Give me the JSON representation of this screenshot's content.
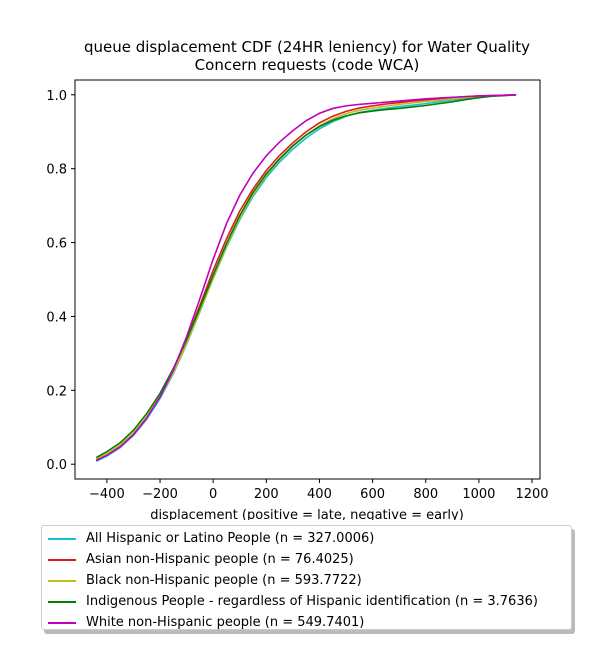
{
  "chart_data": {
    "type": "line",
    "title_lines": [
      "queue displacement CDF (24HR leniency) for Water Quality",
      "Concern  requests (code WCA)"
    ],
    "xlabel": "displacement (positive = late, negative = early)",
    "ylabel": "",
    "xlim": [
      -520,
      1230
    ],
    "ylim": [
      -0.04,
      1.04
    ],
    "xticks": [
      -400,
      -200,
      0,
      200,
      400,
      600,
      800,
      1000,
      1200
    ],
    "yticks": [
      0.0,
      0.2,
      0.4,
      0.6,
      0.8,
      1.0
    ],
    "xtick_labels": [
      "−400",
      "−200",
      "0",
      "200",
      "400",
      "600",
      "800",
      "1000",
      "1200"
    ],
    "ytick_labels": [
      "0.0",
      "0.2",
      "0.4",
      "0.6",
      "0.8",
      "1.0"
    ],
    "grid": false,
    "legend_position": "below",
    "series": [
      {
        "name": "All Hispanic or Latino People (n = 327.0006)",
        "color": "#17becf",
        "x": [
          -440,
          -400,
          -350,
          -300,
          -250,
          -200,
          -150,
          -100,
          -50,
          0,
          50,
          100,
          150,
          200,
          250,
          300,
          350,
          400,
          450,
          500,
          550,
          600,
          650,
          700,
          750,
          800,
          850,
          900,
          950,
          1000,
          1050,
          1100,
          1140
        ],
        "y": [
          0.008,
          0.022,
          0.045,
          0.078,
          0.122,
          0.178,
          0.245,
          0.325,
          0.413,
          0.503,
          0.587,
          0.662,
          0.725,
          0.776,
          0.818,
          0.853,
          0.883,
          0.908,
          0.927,
          0.942,
          0.952,
          0.958,
          0.963,
          0.968,
          0.972,
          0.976,
          0.981,
          0.986,
          0.99,
          0.994,
          0.997,
          0.999,
          1.0
        ]
      },
      {
        "name": "Asian non-Hispanic people (n = 76.4025)",
        "color": "#e31a1c",
        "x": [
          -440,
          -400,
          -350,
          -300,
          -250,
          -200,
          -150,
          -100,
          -50,
          0,
          50,
          100,
          150,
          200,
          250,
          300,
          350,
          400,
          450,
          500,
          550,
          600,
          650,
          700,
          750,
          800,
          850,
          900,
          950,
          1000,
          1050,
          1100,
          1140
        ],
        "y": [
          0.012,
          0.026,
          0.05,
          0.083,
          0.127,
          0.183,
          0.252,
          0.337,
          0.43,
          0.525,
          0.61,
          0.685,
          0.745,
          0.795,
          0.836,
          0.87,
          0.9,
          0.924,
          0.942,
          0.955,
          0.964,
          0.97,
          0.975,
          0.979,
          0.983,
          0.986,
          0.989,
          0.992,
          0.995,
          0.997,
          0.998,
          0.999,
          1.0
        ]
      },
      {
        "name": "Black non-Hispanic people (n = 593.7722)",
        "color": "#bcbd22",
        "x": [
          -440,
          -400,
          -350,
          -300,
          -250,
          -200,
          -150,
          -100,
          -50,
          0,
          50,
          100,
          150,
          200,
          250,
          300,
          350,
          400,
          450,
          500,
          550,
          600,
          650,
          700,
          750,
          800,
          850,
          900,
          950,
          1000,
          1050,
          1100,
          1140
        ],
        "y": [
          0.014,
          0.028,
          0.052,
          0.085,
          0.128,
          0.182,
          0.248,
          0.327,
          0.415,
          0.505,
          0.59,
          0.666,
          0.73,
          0.782,
          0.825,
          0.861,
          0.891,
          0.916,
          0.935,
          0.949,
          0.958,
          0.964,
          0.969,
          0.974,
          0.978,
          0.982,
          0.985,
          0.989,
          0.992,
          0.995,
          0.997,
          0.999,
          1.0
        ]
      },
      {
        "name": "Indigenous People - regardless of Hispanic identification (n = 3.7636)",
        "color": "#008000",
        "x": [
          -440,
          -400,
          -350,
          -300,
          -250,
          -200,
          -150,
          -100,
          -50,
          0,
          50,
          100,
          150,
          200,
          250,
          300,
          350,
          400,
          450,
          500,
          550,
          600,
          650,
          700,
          750,
          800,
          850,
          900,
          950,
          1000,
          1050,
          1100,
          1140
        ],
        "y": [
          0.018,
          0.034,
          0.058,
          0.092,
          0.137,
          0.192,
          0.259,
          0.337,
          0.423,
          0.512,
          0.597,
          0.673,
          0.736,
          0.786,
          0.827,
          0.862,
          0.891,
          0.914,
          0.931,
          0.943,
          0.951,
          0.956,
          0.96,
          0.963,
          0.967,
          0.971,
          0.976,
          0.981,
          0.987,
          0.992,
          0.996,
          0.998,
          1.0
        ]
      },
      {
        "name": "White non-Hispanic people (n = 549.7401)",
        "color": "#bf00bf",
        "x": [
          -440,
          -400,
          -350,
          -300,
          -250,
          -200,
          -150,
          -100,
          -50,
          0,
          50,
          100,
          150,
          200,
          250,
          300,
          350,
          400,
          450,
          500,
          550,
          600,
          650,
          700,
          750,
          800,
          850,
          900,
          950,
          1000,
          1050,
          1100,
          1140
        ],
        "y": [
          0.01,
          0.024,
          0.047,
          0.08,
          0.125,
          0.182,
          0.255,
          0.345,
          0.448,
          0.555,
          0.651,
          0.728,
          0.788,
          0.835,
          0.872,
          0.903,
          0.93,
          0.95,
          0.963,
          0.97,
          0.974,
          0.977,
          0.98,
          0.983,
          0.986,
          0.989,
          0.991,
          0.993,
          0.995,
          0.997,
          0.998,
          0.999,
          1.0
        ]
      }
    ]
  }
}
